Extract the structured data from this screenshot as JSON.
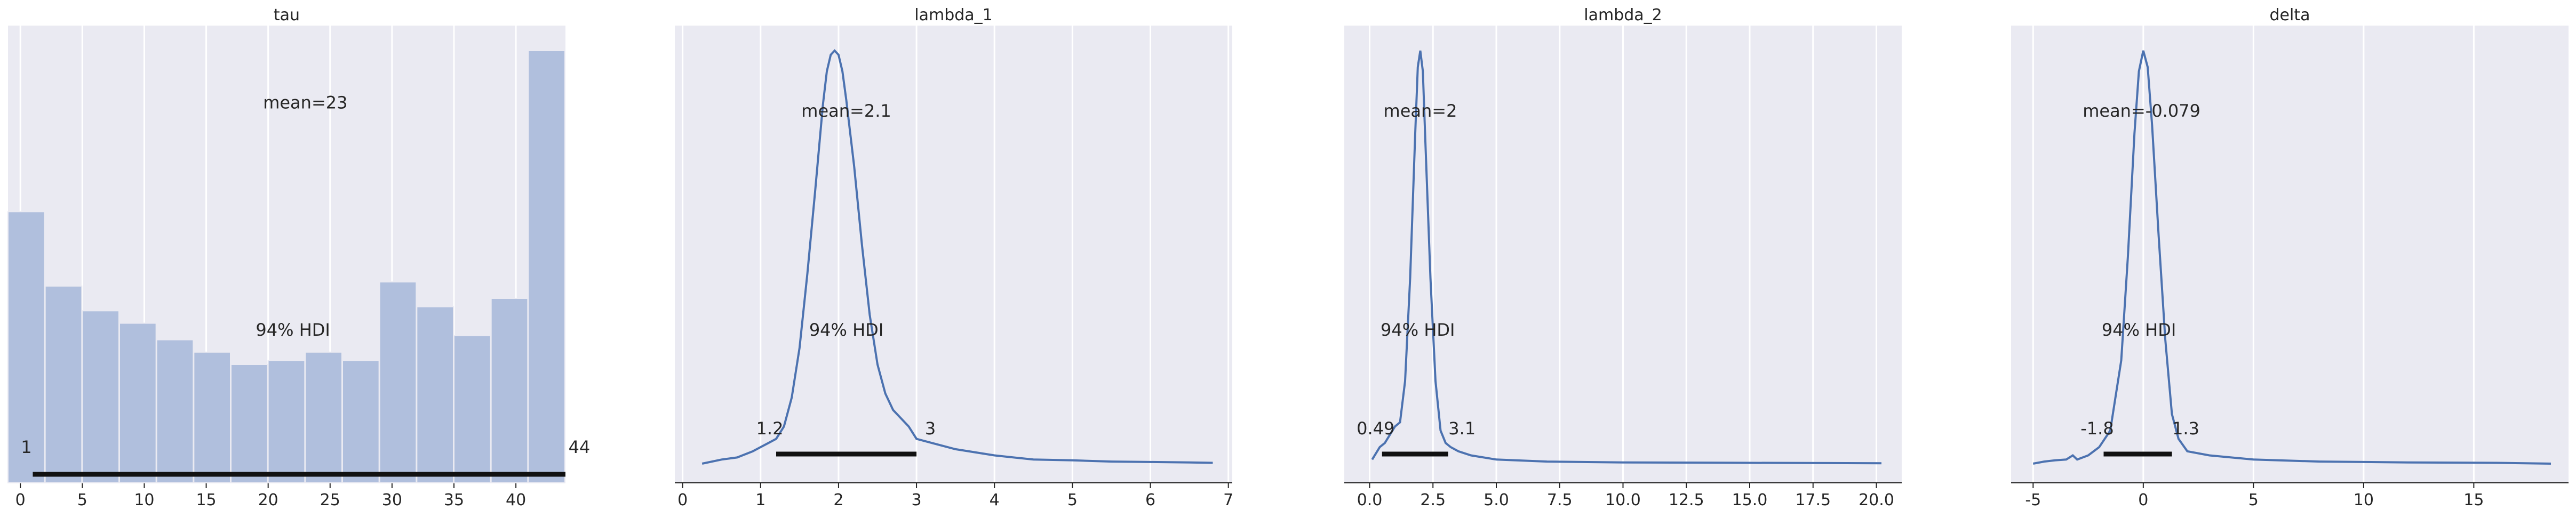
{
  "chart_data": [
    {
      "type": "bar",
      "title": "tau",
      "xlim": [
        -1,
        44
      ],
      "xticks": [
        0,
        5,
        10,
        15,
        20,
        25,
        30,
        35,
        40
      ],
      "bins": [
        {
          "x0": -1,
          "x1": 2,
          "value": 0.61
        },
        {
          "x0": 2,
          "x1": 5,
          "value": 0.43
        },
        {
          "x0": 5,
          "x1": 8,
          "value": 0.37
        },
        {
          "x0": 8,
          "x1": 11,
          "value": 0.34
        },
        {
          "x0": 11,
          "x1": 14,
          "value": 0.3
        },
        {
          "x0": 14,
          "x1": 17,
          "value": 0.27
        },
        {
          "x0": 17,
          "x1": 20,
          "value": 0.24
        },
        {
          "x0": 20,
          "x1": 23,
          "value": 0.25
        },
        {
          "x0": 23,
          "x1": 26,
          "value": 0.27
        },
        {
          "x0": 26,
          "x1": 29,
          "value": 0.25
        },
        {
          "x0": 29,
          "x1": 32,
          "value": 0.44
        },
        {
          "x0": 32,
          "x1": 35,
          "value": 0.38
        },
        {
          "x0": 35,
          "x1": 38,
          "value": 0.31
        },
        {
          "x0": 38,
          "x1": 41,
          "value": 0.4
        },
        {
          "x0": 41,
          "x1": 44,
          "value": 1.0
        }
      ],
      "mean_label": "mean=23",
      "mean_pos": [
        23,
        0.86
      ],
      "hdi_label": "94% HDI",
      "hdi_label_pos": [
        22,
        0.31
      ],
      "hdi": [
        1,
        44
      ],
      "hdi_low_label": "1",
      "hdi_high_label": "44",
      "bar_color": "#b0bfdd"
    },
    {
      "type": "line",
      "title": "lambda_1",
      "xlim": [
        -0.1,
        7.05
      ],
      "xticks": [
        0,
        1,
        2,
        3,
        4,
        5,
        6,
        7
      ],
      "x": [
        0.25,
        0.5,
        0.7,
        0.9,
        1.0,
        1.1,
        1.2,
        1.3,
        1.4,
        1.5,
        1.6,
        1.7,
        1.8,
        1.85,
        1.9,
        1.95,
        2.0,
        2.05,
        2.1,
        2.2,
        2.3,
        2.4,
        2.5,
        2.6,
        2.7,
        2.8,
        2.9,
        3.0,
        3.2,
        3.5,
        4.0,
        4.5,
        5.0,
        5.5,
        6.0,
        6.5,
        6.8
      ],
      "y": [
        0.0,
        0.01,
        0.015,
        0.03,
        0.04,
        0.05,
        0.06,
        0.09,
        0.16,
        0.28,
        0.46,
        0.66,
        0.87,
        0.95,
        0.99,
        1.0,
        0.99,
        0.95,
        0.88,
        0.72,
        0.53,
        0.36,
        0.24,
        0.17,
        0.13,
        0.11,
        0.09,
        0.06,
        0.05,
        0.035,
        0.02,
        0.01,
        0.008,
        0.005,
        0.004,
        0.003,
        0.002
      ],
      "mean_label": "mean=2.1",
      "mean_pos": [
        2.1,
        0.84
      ],
      "hdi_label": "94% HDI",
      "hdi_label_pos": [
        2.1,
        0.31
      ],
      "hdi": [
        1.2,
        3.0
      ],
      "hdi_low_label": "1.2",
      "hdi_high_label": "3",
      "line_color": "#4c72b0"
    },
    {
      "type": "line",
      "title": "lambda_2",
      "xlim": [
        -1.0,
        21.0
      ],
      "xticks": [
        0.0,
        2.5,
        5.0,
        7.5,
        10.0,
        12.5,
        15.0,
        17.5,
        20.0
      ],
      "xtick_labels": [
        "0.0",
        "2.5",
        "5.0",
        "7.5",
        "10.0",
        "12.5",
        "15.0",
        "17.5",
        "20.0"
      ],
      "x": [
        0.1,
        0.4,
        0.6,
        0.8,
        1.0,
        1.2,
        1.4,
        1.6,
        1.8,
        1.9,
        2.0,
        2.1,
        2.2,
        2.4,
        2.6,
        2.8,
        3.0,
        3.2,
        3.5,
        4.0,
        5.0,
        7.0,
        10.0,
        15.0,
        20.2
      ],
      "y": [
        0.01,
        0.04,
        0.05,
        0.07,
        0.09,
        0.1,
        0.2,
        0.45,
        0.8,
        0.96,
        1.0,
        0.95,
        0.78,
        0.45,
        0.2,
        0.08,
        0.05,
        0.04,
        0.03,
        0.02,
        0.01,
        0.005,
        0.003,
        0.002,
        0.001
      ],
      "mean_label": "mean=2",
      "mean_pos": [
        2.0,
        0.84
      ],
      "hdi_label": "94% HDI",
      "hdi_label_pos": [
        1.9,
        0.31
      ],
      "hdi": [
        0.49,
        3.1
      ],
      "hdi_low_label": "0.49",
      "hdi_high_label": "3.1",
      "line_color": "#4c72b0"
    },
    {
      "type": "line",
      "title": "delta",
      "xlim": [
        -6.0,
        19.3
      ],
      "xticks": [
        -5,
        0,
        5,
        10,
        15
      ],
      "x": [
        -5.0,
        -4.5,
        -4.0,
        -3.5,
        -3.2,
        -3.0,
        -2.5,
        -2.0,
        -1.5,
        -1.0,
        -0.7,
        -0.4,
        -0.2,
        0.0,
        0.2,
        0.4,
        0.7,
        1.0,
        1.3,
        1.6,
        2.0,
        3.0,
        5.0,
        8.0,
        12.0,
        16.0,
        18.5
      ],
      "y": [
        0.0,
        0.005,
        0.008,
        0.01,
        0.02,
        0.01,
        0.02,
        0.04,
        0.08,
        0.25,
        0.5,
        0.8,
        0.95,
        1.0,
        0.96,
        0.82,
        0.55,
        0.3,
        0.12,
        0.06,
        0.03,
        0.02,
        0.01,
        0.005,
        0.003,
        0.002,
        0.0
      ],
      "mean_label": "mean=-0.079",
      "mean_pos": [
        -0.079,
        0.84
      ],
      "hdi_label": "94% HDI",
      "hdi_label_pos": [
        -0.2,
        0.31
      ],
      "hdi": [
        -1.8,
        1.3
      ],
      "hdi_low_label": "-1.8",
      "hdi_high_label": "1.3",
      "line_color": "#4c72b0"
    }
  ]
}
